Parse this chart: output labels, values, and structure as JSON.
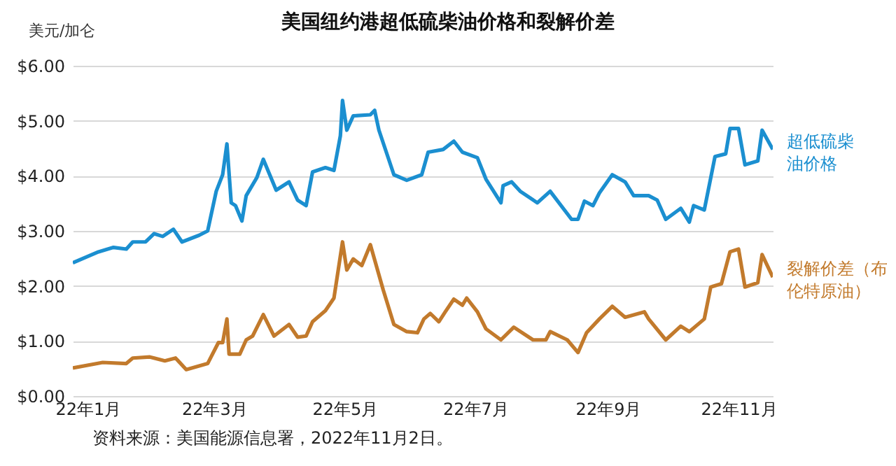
{
  "chart_data": {
    "type": "line",
    "title": "美国纽约港超低硫柴油价格和裂解价差",
    "ylabel": "美元/加仑",
    "annotations": [
      "资料来源：美国能源信息署，2022年11月2日。"
    ],
    "xlim": [
      "2021-12-25",
      "2022-11-17"
    ],
    "xticks": [
      {
        "value": "2022-01-01",
        "label": "22年1月"
      },
      {
        "value": "2022-03-01",
        "label": "22年3月"
      },
      {
        "value": "2022-05-01",
        "label": "22年5月"
      },
      {
        "value": "2022-07-01",
        "label": "22年7月"
      },
      {
        "value": "2022-09-01",
        "label": "22年9月"
      },
      {
        "value": "2022-11-01",
        "label": "22年11月"
      }
    ],
    "ylim": [
      0,
      6
    ],
    "yticks": [
      {
        "value": 0,
        "label": "$0.00"
      },
      {
        "value": 1,
        "label": "$1.00"
      },
      {
        "value": 2,
        "label": "$2.00"
      },
      {
        "value": 3,
        "label": "$3.00"
      },
      {
        "value": 4,
        "label": "$4.00"
      },
      {
        "value": 5,
        "label": "$5.00"
      },
      {
        "value": 6,
        "label": "$6.00"
      }
    ],
    "grid": "y",
    "series": [
      {
        "name": "超低硫柴油价格",
        "color": "#1b8fd0",
        "x": [
          "2021-12-25",
          "2022-01-06",
          "2022-01-13",
          "2022-01-19",
          "2022-01-22",
          "2022-01-28",
          "2022-02-01",
          "2022-02-05",
          "2022-02-10",
          "2022-02-14",
          "2022-02-22",
          "2022-02-26",
          "2022-03-02",
          "2022-03-05",
          "2022-03-07",
          "2022-03-09",
          "2022-03-11",
          "2022-03-14",
          "2022-03-16",
          "2022-03-21",
          "2022-03-24",
          "2022-03-30",
          "2022-04-05",
          "2022-04-09",
          "2022-04-13",
          "2022-04-16",
          "2022-04-22",
          "2022-04-26",
          "2022-04-29",
          "2022-04-30",
          "2022-05-02",
          "2022-05-05",
          "2022-05-13",
          "2022-05-15",
          "2022-05-17",
          "2022-05-24",
          "2022-05-30",
          "2022-06-06",
          "2022-06-09",
          "2022-06-16",
          "2022-06-21",
          "2022-06-25",
          "2022-07-02",
          "2022-07-06",
          "2022-07-13",
          "2022-07-14",
          "2022-07-18",
          "2022-07-22",
          "2022-07-30",
          "2022-08-05",
          "2022-08-15",
          "2022-08-18",
          "2022-08-21",
          "2022-08-25",
          "2022-08-28",
          "2022-09-03",
          "2022-09-09",
          "2022-09-13",
          "2022-09-20",
          "2022-09-24",
          "2022-09-28",
          "2022-10-05",
          "2022-10-09",
          "2022-10-11",
          "2022-10-16",
          "2022-10-21",
          "2022-10-26",
          "2022-10-28",
          "2022-11-01",
          "2022-11-04",
          "2022-11-10",
          "2022-11-12",
          "2022-11-17"
        ],
        "values": [
          2.42,
          2.62,
          2.7,
          2.67,
          2.8,
          2.8,
          2.95,
          2.9,
          3.03,
          2.8,
          2.92,
          3.0,
          3.72,
          4.02,
          4.58,
          3.51,
          3.46,
          3.18,
          3.64,
          3.97,
          4.3,
          3.74,
          3.89,
          3.56,
          3.46,
          4.07,
          4.15,
          4.1,
          4.73,
          5.37,
          4.83,
          5.09,
          5.11,
          5.19,
          4.83,
          4.02,
          3.92,
          4.02,
          4.43,
          4.48,
          4.63,
          4.43,
          4.33,
          3.94,
          3.51,
          3.82,
          3.89,
          3.72,
          3.51,
          3.72,
          3.21,
          3.21,
          3.54,
          3.46,
          3.69,
          4.02,
          3.89,
          3.64,
          3.64,
          3.56,
          3.21,
          3.41,
          3.16,
          3.46,
          3.38,
          4.35,
          4.4,
          4.86,
          4.86,
          4.2,
          4.27,
          4.83,
          4.48
        ]
      },
      {
        "name": "裂解价差（布伦特原油）",
        "color": "#c27a2c",
        "x": [
          "2021-12-25",
          "2022-01-08",
          "2022-01-19",
          "2022-01-22",
          "2022-01-30",
          "2022-02-06",
          "2022-02-11",
          "2022-02-16",
          "2022-02-26",
          "2022-03-03",
          "2022-03-05",
          "2022-03-07",
          "2022-03-08",
          "2022-03-13",
          "2022-03-16",
          "2022-03-19",
          "2022-03-24",
          "2022-03-29",
          "2022-04-05",
          "2022-04-09",
          "2022-04-13",
          "2022-04-16",
          "2022-04-22",
          "2022-04-26",
          "2022-04-30",
          "2022-05-02",
          "2022-05-05",
          "2022-05-09",
          "2022-05-13",
          "2022-05-19",
          "2022-05-24",
          "2022-05-30",
          "2022-06-04",
          "2022-06-07",
          "2022-06-10",
          "2022-06-14",
          "2022-06-17",
          "2022-06-21",
          "2022-06-25",
          "2022-06-27",
          "2022-07-02",
          "2022-07-06",
          "2022-07-13",
          "2022-07-19",
          "2022-07-28",
          "2022-08-03",
          "2022-08-05",
          "2022-08-13",
          "2022-08-18",
          "2022-08-22",
          "2022-08-28",
          "2022-09-03",
          "2022-09-09",
          "2022-09-18",
          "2022-09-20",
          "2022-09-28",
          "2022-10-05",
          "2022-10-09",
          "2022-10-16",
          "2022-10-19",
          "2022-10-24",
          "2022-10-28",
          "2022-11-01",
          "2022-11-04",
          "2022-11-10",
          "2022-11-12",
          "2022-11-17"
        ],
        "values": [
          0.51,
          0.61,
          0.59,
          0.69,
          0.71,
          0.64,
          0.69,
          0.48,
          0.59,
          0.97,
          0.97,
          1.4,
          0.76,
          0.76,
          1.02,
          1.09,
          1.48,
          1.09,
          1.3,
          1.07,
          1.09,
          1.35,
          1.55,
          1.78,
          2.8,
          2.29,
          2.49,
          2.37,
          2.75,
          1.93,
          1.3,
          1.17,
          1.15,
          1.4,
          1.5,
          1.35,
          1.53,
          1.76,
          1.65,
          1.78,
          1.53,
          1.22,
          1.02,
          1.25,
          1.02,
          1.02,
          1.17,
          1.02,
          0.79,
          1.15,
          1.4,
          1.63,
          1.43,
          1.53,
          1.4,
          1.02,
          1.27,
          1.17,
          1.4,
          1.98,
          2.04,
          2.62,
          2.67,
          1.98,
          2.06,
          2.57,
          2.16
        ]
      }
    ]
  }
}
